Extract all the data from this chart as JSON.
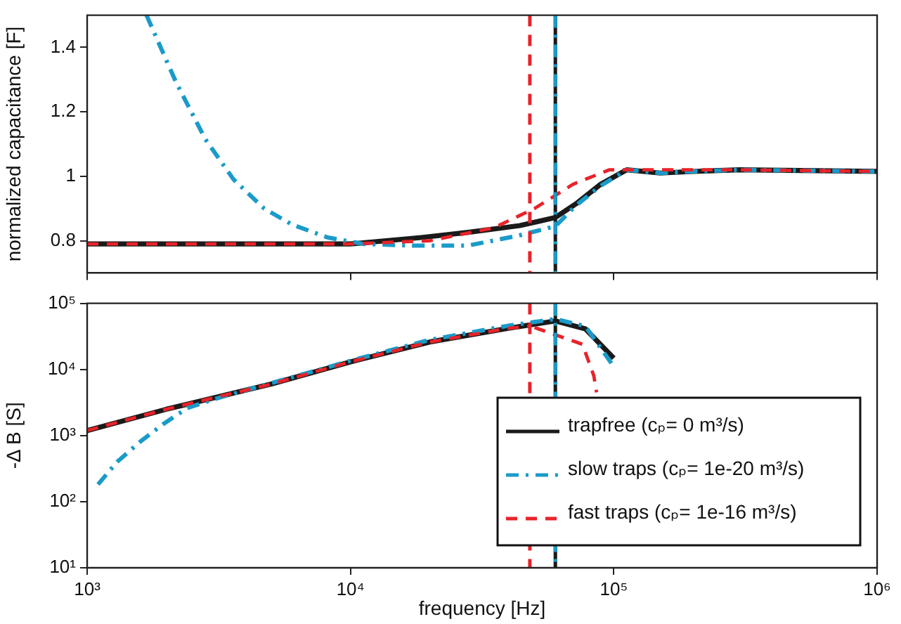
{
  "chart_data": [
    {
      "type": "line",
      "ylabel": "normalized capacitance [F]",
      "log": "x",
      "grid": false,
      "legend": false,
      "tick_labels": "y",
      "marker": "none",
      "xlim": [
        1000,
        1000000
      ],
      "xticks": [
        {
          "value": 1000,
          "label": null
        },
        {
          "value": 10000,
          "label": null
        },
        {
          "value": 100000,
          "label": null
        },
        {
          "value": 1000000,
          "label": null
        }
      ],
      "ylim": [
        0.7,
        1.5
      ],
      "yticks": [
        0.8,
        1,
        1.2,
        1.4
      ],
      "series": [
        {
          "color": "#1a1a1a",
          "line_style": "solid",
          "x": [
            1000,
            3000,
            10000,
            18600,
            28000,
            44000,
            60000,
            72000,
            89000,
            112000,
            150000,
            200000,
            300000,
            1000000
          ],
          "values": [
            0.79,
            0.79,
            0.79,
            0.81,
            0.826,
            0.847,
            0.872,
            0.915,
            0.975,
            1.02,
            1.01,
            1.015,
            1.02,
            1.015
          ]
        },
        {
          "color": "#1a9bc9",
          "line_style": "dashdot",
          "x": [
            1680,
            2170,
            2810,
            3600,
            4700,
            6000,
            8200,
            11200,
            17000,
            28000,
            43000,
            60000,
            72000,
            89000,
            112000,
            150000,
            200000,
            300000,
            1000000
          ],
          "values": [
            1.5,
            1.294,
            1.115,
            0.99,
            0.9,
            0.85,
            0.81,
            0.79,
            0.785,
            0.785,
            0.815,
            0.845,
            0.91,
            0.97,
            1.02,
            1.01,
            1.015,
            1.02,
            1.015
          ]
        },
        {
          "color": "#e8232a",
          "line_style": "dashed",
          "x": [
            1000,
            10000,
            20000,
            35000,
            50000,
            70000,
            96000,
            150000,
            300000,
            1000000
          ],
          "values": [
            0.79,
            0.79,
            0.8,
            0.84,
            0.9,
            0.975,
            1.02,
            1.02,
            1.02,
            1.015
          ]
        }
      ],
      "ref_lines": [
        {
          "axis": "x",
          "value": 48000,
          "color": "#e8232a",
          "line_style": "dashed"
        },
        {
          "axis": "x",
          "value": 60000,
          "color": "#1a1a1a",
          "line_style": "solid"
        },
        {
          "axis": "x",
          "value": 60000,
          "color": "#1a9bc9",
          "line_style": "dashdot"
        }
      ]
    },
    {
      "type": "line",
      "xlabel": "frequency [Hz]",
      "ylabel": "-Δ B [S]",
      "log": "xy",
      "grid": false,
      "legend": "bottom right",
      "marker": "none",
      "xlim": [
        1000,
        1000000
      ],
      "xticks": [
        {
          "value": 1000,
          "label": "10³"
        },
        {
          "value": 10000,
          "label": "10⁴"
        },
        {
          "value": 100000,
          "label": "10⁵"
        },
        {
          "value": 1000000,
          "label": "10⁶"
        }
      ],
      "ylim": [
        10,
        100000
      ],
      "yticks": [
        {
          "value": 10,
          "label": "10¹"
        },
        {
          "value": 100,
          "label": "10²"
        },
        {
          "value": 1000,
          "label": "10³"
        },
        {
          "value": 10000,
          "label": "10⁴"
        },
        {
          "value": 100000,
          "label": "10⁵"
        }
      ],
      "series": [
        {
          "name": "trapfree (cₚ= 0 m³/s)",
          "color": "#1a1a1a",
          "line_style": "solid",
          "x": [
            1000,
            2000,
            5000,
            10000,
            20000,
            40000,
            60000,
            78000,
            100000
          ],
          "values": [
            1190,
            2500,
            6000,
            13000,
            26000,
            42000,
            54000,
            41000,
            14800
          ]
        },
        {
          "name": "slow traps (cₚ= 1e-20 m³/s)",
          "color": "#1a9bc9",
          "line_style": "dashdot",
          "x": [
            1100,
            1300,
            1580,
            1950,
            2400,
            3000,
            5000,
            10000,
            20000,
            40000,
            60000,
            78000,
            100000
          ],
          "values": [
            182,
            400,
            790,
            1500,
            2600,
            3500,
            6200,
            13500,
            28000,
            46000,
            58000,
            45000,
            11000
          ]
        },
        {
          "name": "fast traps (cₚ= 1e-16 m³/s)",
          "color": "#e8232a",
          "line_style": "dashed",
          "x": [
            1000,
            2000,
            5000,
            10000,
            20000,
            40000,
            48000,
            49000,
            50000,
            76000,
            84000,
            86000
          ],
          "values": [
            1190,
            2500,
            6000,
            13000,
            26000,
            42000,
            45000,
            null,
            43000,
            24000,
            8000,
            4500
          ]
        }
      ],
      "ref_lines": [
        {
          "axis": "x",
          "value": 48000,
          "color": "#e8232a",
          "line_style": "dashed"
        },
        {
          "axis": "x",
          "value": 60000,
          "color": "#1a1a1a",
          "line_style": "solid"
        },
        {
          "axis": "x",
          "value": 60000,
          "color": "#1a9bc9",
          "line_style": "dashdot"
        }
      ]
    }
  ]
}
